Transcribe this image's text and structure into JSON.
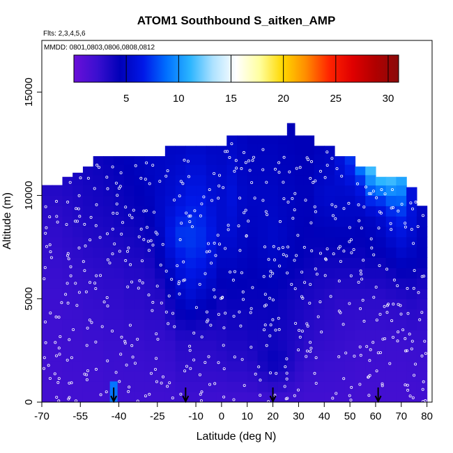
{
  "chart_data": {
    "type": "heatmap",
    "title": "ATOM1 Southbound S_aitken_AMP",
    "subtitle_flights": "Flts: 2,3,4,5,6",
    "subtitle_dates": "MMDD: 0801,0803,0806,0808,0812",
    "xlabel": "Latitude (deg N)",
    "ylabel": "Altitude (m)",
    "xlim": [
      -70,
      82
    ],
    "ylim": [
      0,
      17500
    ],
    "x_ticks": [
      -70,
      -55,
      -40,
      -25,
      -10,
      0,
      10,
      20,
      30,
      40,
      50,
      60,
      70,
      80
    ],
    "x_tick_labels": [
      "-70",
      "-55",
      "-40",
      "-25",
      "-10",
      "0",
      "10",
      "20",
      "30",
      "40",
      "50",
      "60",
      "70",
      "80"
    ],
    "y_ticks": [
      0,
      5000,
      10000,
      15000
    ],
    "y_tick_labels": [
      "0",
      "5000",
      "10000",
      "15000"
    ],
    "colorbar": {
      "min": 0,
      "max": 31,
      "ticks": [
        5,
        10,
        15,
        20,
        25,
        30
      ],
      "tick_labels": [
        "5",
        "10",
        "15",
        "20",
        "25",
        "30"
      ],
      "stops": [
        "#6a0fd8",
        "#3b0fd0",
        "#0000b8",
        "#0018e8",
        "#0070ff",
        "#2ab4ff",
        "#aee2ff",
        "#ffffff",
        "#ffffa0",
        "#ffd800",
        "#ff8c00",
        "#ff2400",
        "#e00000",
        "#b00000",
        "#8a0a0a"
      ]
    },
    "columns": [
      {
        "x": -68,
        "top": 10500,
        "profile": [
          [
            0,
            1.8
          ],
          [
            3000,
            2.0
          ],
          [
            6000,
            2.3
          ],
          [
            9000,
            2.8
          ],
          [
            10500,
            3.2
          ]
        ]
      },
      {
        "x": -64,
        "top": 10500,
        "profile": [
          [
            0,
            1.8
          ],
          [
            3000,
            2.0
          ],
          [
            6000,
            2.3
          ],
          [
            9000,
            2.8
          ],
          [
            10500,
            3.2
          ]
        ]
      },
      {
        "x": -60,
        "top": 10900,
        "profile": [
          [
            0,
            1.9
          ],
          [
            3000,
            2.1
          ],
          [
            6000,
            2.4
          ],
          [
            9000,
            3.0
          ],
          [
            10900,
            3.4
          ]
        ]
      },
      {
        "x": -56,
        "top": 11100,
        "profile": [
          [
            0,
            1.9
          ],
          [
            3000,
            2.1
          ],
          [
            6000,
            2.5
          ],
          [
            9000,
            3.2
          ],
          [
            11100,
            3.6
          ]
        ]
      },
      {
        "x": -52,
        "top": 11400,
        "profile": [
          [
            0,
            1.9
          ],
          [
            3000,
            2.2
          ],
          [
            6000,
            2.6
          ],
          [
            9000,
            3.4
          ],
          [
            11400,
            3.8
          ]
        ]
      },
      {
        "x": -48,
        "top": 11900,
        "profile": [
          [
            0,
            1.9
          ],
          [
            3000,
            2.2
          ],
          [
            6000,
            2.7
          ],
          [
            9000,
            3.5
          ],
          [
            11900,
            4.0
          ]
        ]
      },
      {
        "x": -44,
        "top": 11900,
        "profile": [
          [
            0,
            2.0
          ],
          [
            1500,
            2.2
          ],
          [
            3000,
            2.3
          ],
          [
            6000,
            2.8
          ],
          [
            9000,
            3.6
          ],
          [
            11900,
            4.2
          ]
        ]
      },
      {
        "x": -40,
        "top": 11900,
        "profile": [
          [
            0,
            2.0
          ],
          [
            3000,
            2.3
          ],
          [
            6000,
            2.8
          ],
          [
            9000,
            3.8
          ],
          [
            11900,
            4.4
          ]
        ]
      },
      {
        "x": -36,
        "top": 11900,
        "profile": [
          [
            0,
            2.0
          ],
          [
            3000,
            2.4
          ],
          [
            6000,
            3.0
          ],
          [
            9000,
            4.0
          ],
          [
            11900,
            4.6
          ]
        ]
      },
      {
        "x": -32,
        "top": 11900,
        "profile": [
          [
            0,
            2.0
          ],
          [
            3000,
            2.4
          ],
          [
            6000,
            3.0
          ],
          [
            9000,
            4.2
          ],
          [
            11900,
            4.8
          ]
        ]
      },
      {
        "x": -28,
        "top": 11900,
        "profile": [
          [
            0,
            2.0
          ],
          [
            3000,
            2.5
          ],
          [
            6000,
            3.2
          ],
          [
            9000,
            4.5
          ],
          [
            11900,
            5.0
          ]
        ]
      },
      {
        "x": -24,
        "top": 11900,
        "profile": [
          [
            0,
            2.0
          ],
          [
            3000,
            2.5
          ],
          [
            5000,
            3.0
          ],
          [
            7000,
            4.5
          ],
          [
            9000,
            5.2
          ],
          [
            11900,
            5.0
          ]
        ]
      },
      {
        "x": -20,
        "top": 12400,
        "profile": [
          [
            0,
            2.0
          ],
          [
            3000,
            2.6
          ],
          [
            5000,
            4.0
          ],
          [
            7000,
            5.5
          ],
          [
            8000,
            6.5
          ],
          [
            10000,
            5.5
          ],
          [
            12400,
            5.0
          ]
        ]
      },
      {
        "x": -16,
        "top": 12400,
        "profile": [
          [
            0,
            2.1
          ],
          [
            3000,
            3.0
          ],
          [
            5000,
            5.0
          ],
          [
            7000,
            6.5
          ],
          [
            8000,
            7.5
          ],
          [
            10000,
            6.0
          ],
          [
            12400,
            5.0
          ]
        ]
      },
      {
        "x": -12,
        "top": 12400,
        "profile": [
          [
            0,
            2.1
          ],
          [
            3000,
            3.0
          ],
          [
            5000,
            5.5
          ],
          [
            7000,
            7.0
          ],
          [
            8000,
            7.5
          ],
          [
            10000,
            6.5
          ],
          [
            12400,
            5.2
          ]
        ]
      },
      {
        "x": -8,
        "top": 12400,
        "profile": [
          [
            0,
            2.1
          ],
          [
            3000,
            3.0
          ],
          [
            5000,
            5.0
          ],
          [
            7000,
            6.8
          ],
          [
            8000,
            7.2
          ],
          [
            10000,
            6.5
          ],
          [
            12400,
            5.2
          ]
        ]
      },
      {
        "x": -4,
        "top": 12400,
        "profile": [
          [
            0,
            2.1
          ],
          [
            3000,
            3.0
          ],
          [
            5000,
            4.6
          ],
          [
            7000,
            6.0
          ],
          [
            8000,
            6.5
          ],
          [
            10000,
            5.8
          ],
          [
            12400,
            5.0
          ]
        ]
      },
      {
        "x": 0,
        "top": 12400,
        "profile": [
          [
            0,
            2.0
          ],
          [
            2000,
            2.8
          ],
          [
            3000,
            3.2
          ],
          [
            5000,
            4.0
          ],
          [
            7000,
            5.0
          ],
          [
            8000,
            5.5
          ],
          [
            10000,
            5.5
          ],
          [
            12400,
            5.0
          ]
        ]
      },
      {
        "x": 4,
        "top": 12900,
        "profile": [
          [
            0,
            2.0
          ],
          [
            2000,
            3.0
          ],
          [
            3000,
            3.4
          ],
          [
            5000,
            4.2
          ],
          [
            7000,
            5.0
          ],
          [
            8000,
            5.5
          ],
          [
            10000,
            6.0
          ],
          [
            12900,
            5.0
          ]
        ]
      },
      {
        "x": 8,
        "top": 12900,
        "profile": [
          [
            0,
            2.0
          ],
          [
            2000,
            3.0
          ],
          [
            3000,
            3.4
          ],
          [
            5000,
            4.2
          ],
          [
            7000,
            4.8
          ],
          [
            8000,
            5.0
          ],
          [
            10000,
            5.2
          ],
          [
            12900,
            4.8
          ]
        ]
      },
      {
        "x": 12,
        "top": 12900,
        "profile": [
          [
            0,
            2.0
          ],
          [
            2000,
            3.2
          ],
          [
            3000,
            3.6
          ],
          [
            5000,
            4.2
          ],
          [
            7000,
            4.6
          ],
          [
            8000,
            4.8
          ],
          [
            10000,
            5.0
          ],
          [
            12900,
            4.6
          ]
        ]
      },
      {
        "x": 16,
        "top": 12900,
        "profile": [
          [
            0,
            2.0
          ],
          [
            2000,
            3.8
          ],
          [
            3000,
            3.6
          ],
          [
            5000,
            4.2
          ],
          [
            7000,
            4.8
          ],
          [
            8000,
            5.0
          ],
          [
            10000,
            5.0
          ],
          [
            12900,
            4.6
          ]
        ]
      },
      {
        "x": 20,
        "top": 12900,
        "profile": [
          [
            0,
            2.0
          ],
          [
            2000,
            4.2
          ],
          [
            3000,
            3.8
          ],
          [
            5000,
            4.2
          ],
          [
            7000,
            5.0
          ],
          [
            8000,
            5.2
          ],
          [
            10000,
            5.0
          ],
          [
            12900,
            4.6
          ]
        ]
      },
      {
        "x": 24,
        "top": 12900,
        "profile": [
          [
            0,
            2.0
          ],
          [
            2000,
            4.0
          ],
          [
            3000,
            3.6
          ],
          [
            5000,
            4.0
          ],
          [
            7000,
            4.8
          ],
          [
            8000,
            5.0
          ],
          [
            10000,
            4.8
          ],
          [
            12900,
            4.5
          ]
        ]
      },
      {
        "x": 27,
        "top": 13500,
        "profile": [
          [
            0,
            2.0
          ],
          [
            2000,
            3.4
          ],
          [
            3000,
            3.4
          ],
          [
            5000,
            3.8
          ],
          [
            7000,
            4.6
          ],
          [
            10000,
            4.8
          ],
          [
            13500,
            4.4
          ]
        ]
      },
      {
        "x": 30,
        "top": 12900,
        "profile": [
          [
            0,
            2.0
          ],
          [
            2000,
            2.8
          ],
          [
            3000,
            3.2
          ],
          [
            5000,
            3.6
          ],
          [
            7000,
            4.4
          ],
          [
            10000,
            4.6
          ],
          [
            12900,
            4.4
          ]
        ]
      },
      {
        "x": 34,
        "top": 12900,
        "profile": [
          [
            0,
            1.9
          ],
          [
            3000,
            2.8
          ],
          [
            5000,
            3.4
          ],
          [
            7000,
            4.2
          ],
          [
            10000,
            4.6
          ],
          [
            12900,
            4.4
          ]
        ]
      },
      {
        "x": 38,
        "top": 12400,
        "profile": [
          [
            0,
            1.9
          ],
          [
            3000,
            2.6
          ],
          [
            5000,
            3.2
          ],
          [
            7000,
            4.0
          ],
          [
            10000,
            5.2
          ],
          [
            12400,
            4.6
          ]
        ]
      },
      {
        "x": 42,
        "top": 12400,
        "profile": [
          [
            0,
            1.9
          ],
          [
            3000,
            2.5
          ],
          [
            5000,
            3.0
          ],
          [
            7000,
            4.0
          ],
          [
            10000,
            5.4
          ],
          [
            12400,
            4.8
          ]
        ]
      },
      {
        "x": 46,
        "top": 11900,
        "profile": [
          [
            0,
            1.9
          ],
          [
            3000,
            2.4
          ],
          [
            5000,
            2.8
          ],
          [
            7000,
            4.0
          ],
          [
            9000,
            5.0
          ],
          [
            10000,
            5.2
          ],
          [
            11900,
            6.0
          ]
        ]
      },
      {
        "x": 50,
        "top": 11900,
        "profile": [
          [
            0,
            1.9
          ],
          [
            3000,
            2.3
          ],
          [
            5000,
            2.8
          ],
          [
            7000,
            4.0
          ],
          [
            9000,
            5.0
          ],
          [
            10000,
            5.2
          ],
          [
            11900,
            7.5
          ]
        ]
      },
      {
        "x": 54,
        "top": 11400,
        "profile": [
          [
            0,
            1.8
          ],
          [
            3000,
            2.2
          ],
          [
            5000,
            2.8
          ],
          [
            7000,
            4.0
          ],
          [
            9000,
            4.8
          ],
          [
            10500,
            6.5
          ],
          [
            11400,
            9.5
          ]
        ]
      },
      {
        "x": 58,
        "top": 11400,
        "profile": [
          [
            0,
            1.8
          ],
          [
            3000,
            2.2
          ],
          [
            5000,
            2.8
          ],
          [
            7000,
            4.2
          ],
          [
            9000,
            5.0
          ],
          [
            10500,
            9.0
          ],
          [
            11400,
            12.0
          ]
        ]
      },
      {
        "x": 62,
        "top": 10900,
        "profile": [
          [
            0,
            1.8
          ],
          [
            3000,
            2.2
          ],
          [
            5000,
            2.8
          ],
          [
            7000,
            4.2
          ],
          [
            9000,
            5.5
          ],
          [
            10000,
            8.0
          ],
          [
            10900,
            12.0
          ]
        ]
      },
      {
        "x": 66,
        "top": 10900,
        "profile": [
          [
            0,
            1.8
          ],
          [
            3000,
            2.2
          ],
          [
            5000,
            2.9
          ],
          [
            7000,
            4.5
          ],
          [
            9000,
            6.5
          ],
          [
            10000,
            9.0
          ],
          [
            10900,
            12.0
          ]
        ]
      },
      {
        "x": 70,
        "top": 10900,
        "profile": [
          [
            0,
            1.8
          ],
          [
            3000,
            2.2
          ],
          [
            5000,
            3.0
          ],
          [
            7000,
            5.0
          ],
          [
            9000,
            7.0
          ],
          [
            10000,
            9.0
          ],
          [
            10900,
            11.0
          ]
        ]
      },
      {
        "x": 74,
        "top": 10400,
        "profile": [
          [
            0,
            1.8
          ],
          [
            3000,
            2.3
          ],
          [
            5000,
            3.2
          ],
          [
            7000,
            4.8
          ],
          [
            9000,
            6.0
          ],
          [
            10400,
            6.0
          ]
        ]
      },
      {
        "x": 78,
        "top": 9500,
        "profile": [
          [
            0,
            1.9
          ],
          [
            3000,
            2.3
          ],
          [
            5000,
            3.0
          ],
          [
            7000,
            4.5
          ],
          [
            9500,
            5.0
          ]
        ]
      }
    ],
    "hotspot": {
      "x": -42,
      "alt_low": 0,
      "alt_high": 1000,
      "value": 9.0
    },
    "arrows_x": [
      -42,
      -14,
      20,
      61
    ]
  }
}
